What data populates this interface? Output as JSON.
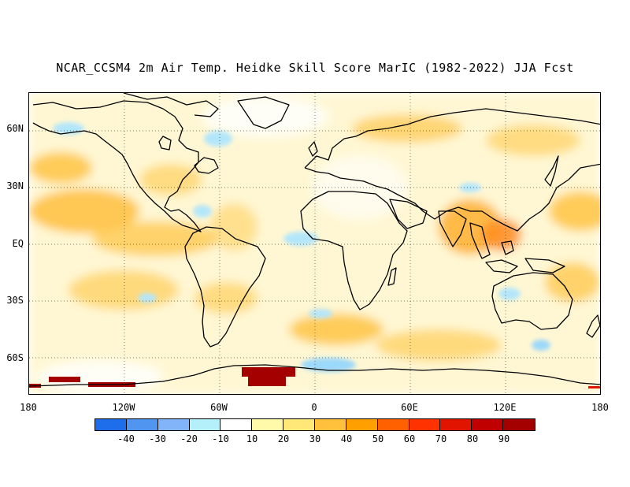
{
  "title": "NCAR_CCSM4 2m Air Temp. Heidke Skill Score MarIC (1982-2022) JJA Fcst",
  "map": {
    "projection": "equirectangular",
    "lon_range": [
      -180,
      180
    ],
    "lat_range": [
      -80,
      80
    ],
    "lat_labels": [
      "60N",
      "30N",
      "EQ",
      "30S",
      "60S"
    ],
    "lon_labels": [
      "180",
      "120W",
      "60W",
      "0",
      "60E",
      "120E",
      "180"
    ],
    "gridlines": "dotted"
  },
  "colorbar": {
    "labels": [
      "-40",
      "-30",
      "-20",
      "-10",
      "10",
      "20",
      "30",
      "40",
      "50",
      "60",
      "70",
      "80",
      "90"
    ],
    "colors": [
      "#1e6eeb",
      "#5096f0",
      "#82b4fa",
      "#b4f0fa",
      "#ffffff",
      "#fffaaa",
      "#ffe878",
      "#ffc03c",
      "#ffa000",
      "#ff6000",
      "#ff3200",
      "#e11400",
      "#c00000",
      "#a50000"
    ]
  }
}
